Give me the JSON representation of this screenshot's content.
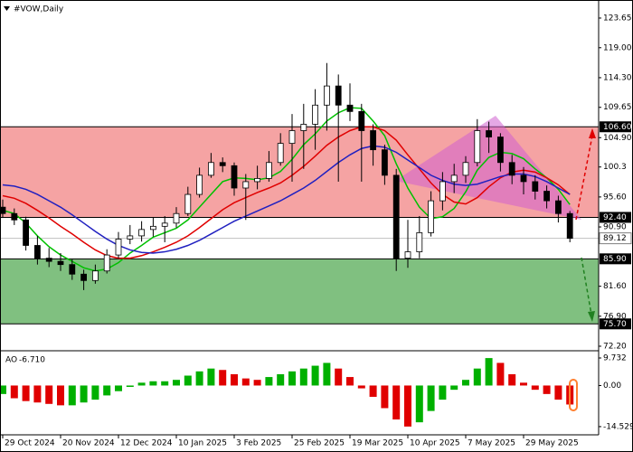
{
  "chart_data": [
    {
      "type": "candlestick",
      "title": "#VOW,Daily",
      "categories": [
        "29 Oct 2024",
        null,
        null,
        null,
        null,
        "20 Nov 2024",
        null,
        null,
        null,
        null,
        "12 Dec 2024",
        null,
        null,
        null,
        null,
        "10 Jan 2025",
        null,
        null,
        null,
        null,
        "3 Feb 2025",
        null,
        null,
        null,
        null,
        "25 Feb 2025",
        null,
        null,
        null,
        null,
        "19 Mar 2025",
        null,
        null,
        null,
        null,
        "10 Apr 2025",
        null,
        null,
        null,
        null,
        "7 May 2025",
        null,
        null,
        null,
        null,
        "29 May 2025",
        null,
        null,
        null,
        null
      ],
      "candles": [
        [
          94,
          95.2,
          92.3,
          93
        ],
        [
          93,
          93.8,
          91.2,
          92
        ],
        [
          92,
          92.5,
          87.2,
          88
        ],
        [
          88,
          89.5,
          85,
          86
        ],
        [
          86,
          87.6,
          84.6,
          85.5
        ],
        [
          85.5,
          86.8,
          84,
          85
        ],
        [
          85,
          85.8,
          82.6,
          83.5
        ],
        [
          83.5,
          84.2,
          81,
          82.5
        ],
        [
          82.5,
          85,
          82,
          84
        ],
        [
          84,
          87.4,
          83.6,
          86.5
        ],
        [
          86.5,
          90.1,
          86,
          89
        ],
        [
          89,
          91.2,
          88.2,
          89.5
        ],
        [
          89.5,
          91.8,
          88.6,
          90.5
        ],
        [
          90.5,
          92.4,
          89.4,
          91
        ],
        [
          91,
          92.6,
          88.5,
          91.5
        ],
        [
          91.5,
          94,
          90.8,
          93
        ],
        [
          93,
          97.2,
          92.6,
          96
        ],
        [
          96,
          100.2,
          95.5,
          99
        ],
        [
          99,
          102.5,
          98.6,
          101
        ],
        [
          101,
          101.8,
          99.5,
          100.5
        ],
        [
          100.5,
          101,
          95.8,
          97
        ],
        [
          97,
          99.2,
          92,
          98
        ],
        [
          98,
          100.5,
          96.8,
          98.5
        ],
        [
          98.5,
          102.8,
          98,
          101
        ],
        [
          101,
          105.6,
          100.5,
          104
        ],
        [
          104,
          108.6,
          98,
          106
        ],
        [
          106,
          110.2,
          100,
          107
        ],
        [
          107,
          112.5,
          103,
          110
        ],
        [
          110,
          116.6,
          106,
          113
        ],
        [
          113,
          114.8,
          98,
          110
        ],
        [
          110,
          113.4,
          107.5,
          109
        ],
        [
          109,
          110.2,
          98,
          106
        ],
        [
          106,
          107,
          100.5,
          103
        ],
        [
          103,
          103.8,
          97.5,
          99
        ],
        [
          99,
          100,
          84,
          86
        ],
        [
          86,
          92,
          84.5,
          87
        ],
        [
          87,
          92.6,
          86,
          90
        ],
        [
          90,
          96.5,
          89.4,
          95
        ],
        [
          95,
          99.5,
          93.5,
          98
        ],
        [
          98,
          100.8,
          96.2,
          99
        ],
        [
          99,
          102,
          97.8,
          101
        ],
        [
          101,
          107.8,
          100.4,
          106
        ],
        [
          106,
          107.4,
          102.5,
          105
        ],
        [
          105,
          105.6,
          99.6,
          101
        ],
        [
          101,
          102.2,
          97.6,
          99
        ],
        [
          99,
          100.3,
          96,
          98
        ],
        [
          98,
          99,
          95.2,
          96.5
        ],
        [
          96.5,
          97.4,
          93.8,
          95
        ],
        [
          95,
          95.8,
          91.6,
          93
        ],
        [
          93,
          93.4,
          88.5,
          89.12
        ]
      ],
      "up_color": "#ffffff",
      "down_color": "#000000",
      "series": [
        {
          "color": "#00c000",
          "values": [
            93.5,
            93,
            91.5,
            89.5,
            87.8,
            86.5,
            85.5,
            84.5,
            84,
            84.3,
            85.3,
            86.8,
            88,
            89.3,
            90,
            90.7,
            92,
            94,
            96,
            98,
            98.6,
            98.5,
            98.3,
            98.6,
            99.6,
            101.5,
            103.8,
            105.5,
            107.5,
            108.8,
            109.6,
            109.5,
            107.5,
            105.2,
            100.8,
            97,
            94,
            92.2,
            92.5,
            93.8,
            96.4,
            99.8,
            101.8,
            102.6,
            102.4,
            101.6,
            100,
            98.6,
            96.8,
            94.4
          ]
        },
        {
          "color": "#e00000",
          "values": [
            95.8,
            95.4,
            94.6,
            93.5,
            92.3,
            91,
            89.8,
            88.5,
            87.3,
            86.4,
            86,
            86,
            86.4,
            87,
            87.7,
            88.5,
            89.5,
            90.8,
            92.2,
            93.6,
            94.7,
            95.5,
            96.3,
            97,
            97.8,
            99,
            100.4,
            102,
            103.7,
            105,
            106,
            106.6,
            106.6,
            106,
            104.5,
            102.2,
            100,
            97.8,
            96,
            94.8,
            94.5,
            95.5,
            97.2,
            98.6,
            99.5,
            99.8,
            99.5,
            98.6,
            97.5,
            96
          ]
        },
        {
          "color": "#2020c0",
          "values": [
            97.5,
            97.3,
            96.8,
            96,
            95,
            94,
            92.8,
            91.5,
            90.2,
            89,
            88,
            87.3,
            86.9,
            86.8,
            87,
            87.4,
            88,
            88.8,
            89.8,
            90.8,
            91.8,
            92.6,
            93.4,
            94.2,
            95,
            96,
            97,
            98.2,
            99.6,
            101,
            102.2,
            103.2,
            103.6,
            103.4,
            102.6,
            101.4,
            100.2,
            99,
            98.2,
            97.6,
            97.4,
            97.6,
            98.2,
            98.8,
            99.2,
            99.2,
            98.8,
            98,
            97,
            96
          ]
        }
      ],
      "zones": [
        {
          "range": [
            92.4,
            106.6
          ],
          "color": "#f5a3a3"
        },
        {
          "range": [
            75.7,
            85.9
          ],
          "color": "#80c080"
        }
      ],
      "levels": [
        {
          "value": 106.6,
          "label": "106.60"
        },
        {
          "value": 92.4,
          "label": "92.40"
        },
        {
          "value": 85.9,
          "label": "85.90"
        },
        {
          "value": 75.7,
          "label": "75.70"
        }
      ],
      "level_color": "#000000",
      "price_line_color": "#c0c0c0",
      "ylim": [
        71.63,
        126.48
      ],
      "yticks": [
        123.65,
        {
          "value": 119,
          "label": "119.00"
        },
        {
          "value": 114.3,
          "label": "114.30"
        },
        109.65,
        {
          "value": 104.9,
          "label": "104.90"
        },
        100.3,
        {
          "value": 95.6,
          "label": "95.60"
        },
        {
          "value": 90.9,
          "label": "90.90"
        },
        {
          "value": 81.6,
          "label": "81.60"
        },
        {
          "value": 76.9,
          "label": "76.90"
        },
        {
          "value": 72.2,
          "label": "72.20"
        }
      ]
    },
    {
      "type": "histogram-oscillator",
      "title": "AO",
      "current": {
        "value": -6.71,
        "label": "-6.710"
      },
      "values": [
        -3,
        -4.5,
        -5.5,
        -6,
        -6.5,
        -7,
        -7,
        -6,
        -5,
        -3.5,
        -2,
        -0.5,
        1,
        1.5,
        1.5,
        2,
        3.5,
        5,
        6,
        5.5,
        4,
        2.5,
        2,
        3,
        4,
        5,
        6,
        7,
        8,
        6,
        3,
        -1,
        -4,
        -8,
        -12,
        -14.5,
        -13,
        -9,
        -5,
        -1.5,
        2,
        6,
        9.7,
        8,
        4,
        1,
        -1.5,
        -3,
        -5,
        -6.71
      ],
      "up_color": "#00b000",
      "down_color": "#e00000",
      "ylim": [
        -17.43,
        11.97
      ],
      "yticks": [
        9.732,
        {
          "value": 0,
          "label": "0.00"
        },
        -14.529
      ]
    }
  ]
}
